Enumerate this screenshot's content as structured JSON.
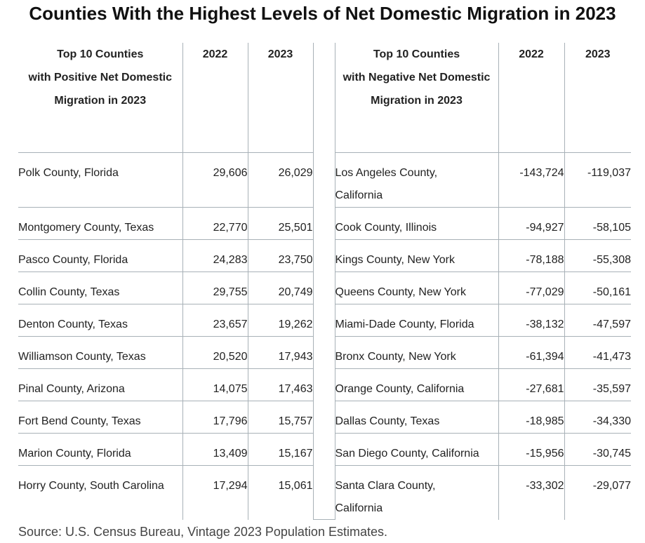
{
  "title": "Counties With the Highest Levels of Net Domestic Migration in 2023",
  "positive": {
    "heading": [
      "Top 10 Counties",
      "with Positive Net Domestic",
      "Migration in 2023"
    ],
    "col_2022": "2022",
    "col_2023": "2023",
    "rows": [
      {
        "county": "Polk County, Florida",
        "y2022": "29,606",
        "y2023": "26,029"
      },
      {
        "county": "Montgomery County, Texas",
        "y2022": "22,770",
        "y2023": "25,501"
      },
      {
        "county": "Pasco County, Florida",
        "y2022": "24,283",
        "y2023": "23,750"
      },
      {
        "county": "Collin County, Texas",
        "y2022": "29,755",
        "y2023": "20,749"
      },
      {
        "county": "Denton County, Texas",
        "y2022": "23,657",
        "y2023": "19,262"
      },
      {
        "county": "Williamson County, Texas",
        "y2022": "20,520",
        "y2023": "17,943"
      },
      {
        "county": "Pinal County, Arizona",
        "y2022": "14,075",
        "y2023": "17,463"
      },
      {
        "county": "Fort Bend County, Texas",
        "y2022": "17,796",
        "y2023": "15,757"
      },
      {
        "county": "Marion County, Florida",
        "y2022": "13,409",
        "y2023": "15,167"
      },
      {
        "county": "Horry County, South Carolina",
        "y2022": "17,294",
        "y2023": "15,061"
      }
    ]
  },
  "negative": {
    "heading": [
      "Top 10 Counties",
      "with Negative Net Domestic",
      "Migration in 2023"
    ],
    "col_2022": "2022",
    "col_2023": "2023",
    "rows": [
      {
        "county": [
          "Los Angeles County,",
          "California"
        ],
        "y2022": "-143,724",
        "y2023": "-119,037"
      },
      {
        "county": [
          "Cook County, Illinois"
        ],
        "y2022": "-94,927",
        "y2023": "-58,105"
      },
      {
        "county": [
          "Kings County, New York"
        ],
        "y2022": "-78,188",
        "y2023": "-55,308"
      },
      {
        "county": [
          "Queens County, New York"
        ],
        "y2022": "-77,029",
        "y2023": "-50,161"
      },
      {
        "county": [
          "Miami-Dade County, Florida"
        ],
        "y2022": "-38,132",
        "y2023": "-47,597"
      },
      {
        "county": [
          "Bronx County, New York"
        ],
        "y2022": "-61,394",
        "y2023": "-41,473"
      },
      {
        "county": [
          "Orange County, California"
        ],
        "y2022": "-27,681",
        "y2023": "-35,597"
      },
      {
        "county": [
          "Dallas County, Texas"
        ],
        "y2022": "-18,985",
        "y2023": "-34,330"
      },
      {
        "county": [
          "San Diego County, California"
        ],
        "y2022": "-15,956",
        "y2023": "-30,745"
      },
      {
        "county": [
          "Santa Clara County,",
          "California"
        ],
        "y2022": "-33,302",
        "y2023": "-29,077"
      }
    ]
  },
  "source": "Source: U.S. Census Bureau, Vintage 2023 Population Estimates."
}
